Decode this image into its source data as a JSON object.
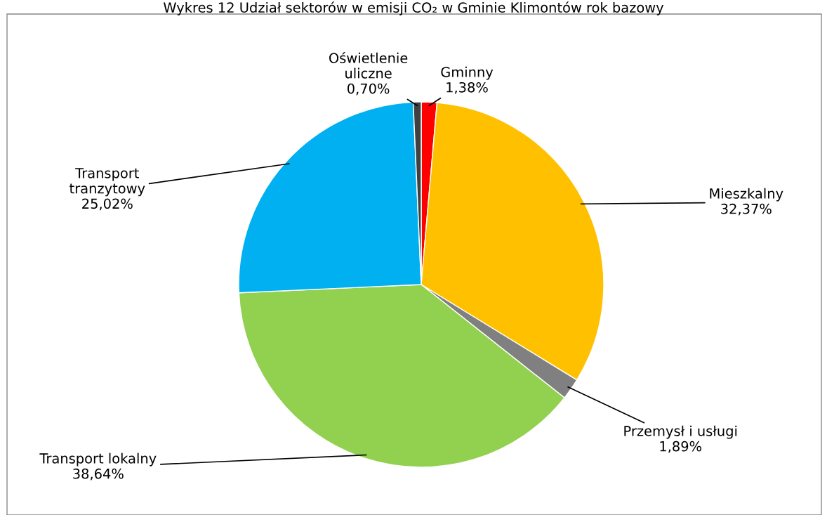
{
  "chart_data": {
    "type": "pie",
    "title": "Wykres 12 Udział sektorów w emisji CO₂ w Gminie Klimontów rok bazowy",
    "categories": [
      "Gminny",
      "Mieszkalny",
      "Przemysł i usługi",
      "Transport lokalny",
      "Transport\ntranzytowy",
      "Oświetlenie\nuliczne"
    ],
    "values": [
      1.38,
      32.37,
      1.89,
      38.64,
      25.02,
      0.7
    ],
    "value_labels": [
      "1,38%",
      "32,37%",
      "1,89%",
      "38,64%",
      "25,02%",
      "0,70%"
    ],
    "colors": [
      "#ff0000",
      "#ffc000",
      "#808080",
      "#92d050",
      "#00b0f0",
      "#404040"
    ]
  }
}
